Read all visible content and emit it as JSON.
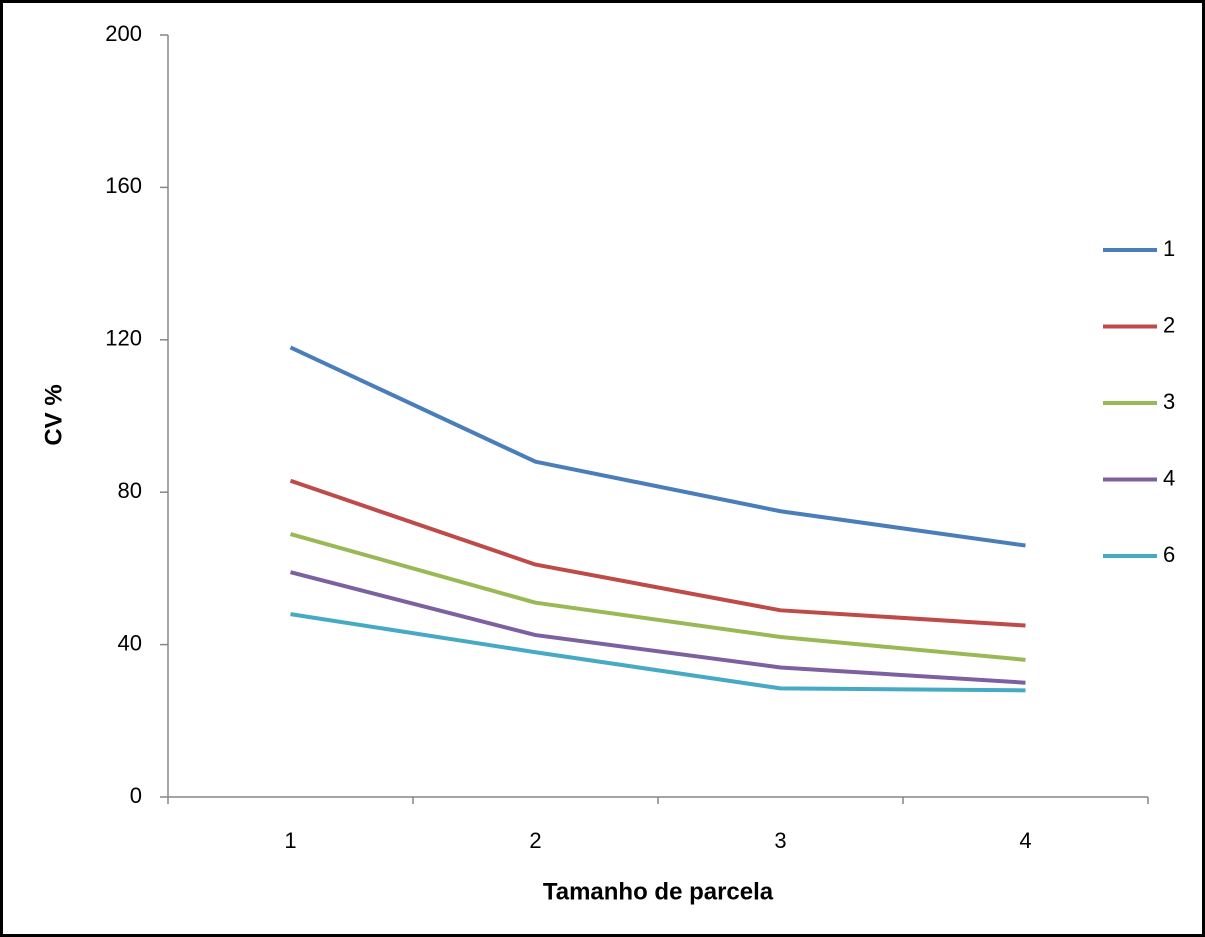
{
  "chart_data": {
    "type": "line",
    "x_label": "Tamanho de parcela",
    "y_label": "CV %",
    "categories": [
      "1",
      "2",
      "3",
      "4"
    ],
    "series": [
      {
        "name": "1",
        "color": "#4a7ebb",
        "values": [
          118,
          88,
          75,
          66
        ]
      },
      {
        "name": "2",
        "color": "#be4b48",
        "values": [
          83,
          61,
          49,
          45
        ]
      },
      {
        "name": "3",
        "color": "#98b954",
        "values": [
          69,
          51,
          42,
          36
        ]
      },
      {
        "name": "4",
        "color": "#7d60a0",
        "values": [
          59,
          42.5,
          34,
          30
        ]
      },
      {
        "name": "6",
        "color": "#46aac5",
        "values": [
          48,
          38,
          28.5,
          28
        ]
      }
    ],
    "ylim": [
      0,
      200
    ],
    "yticks": [
      0,
      40,
      80,
      120,
      160,
      200
    ],
    "grid": false,
    "legend": "right"
  }
}
